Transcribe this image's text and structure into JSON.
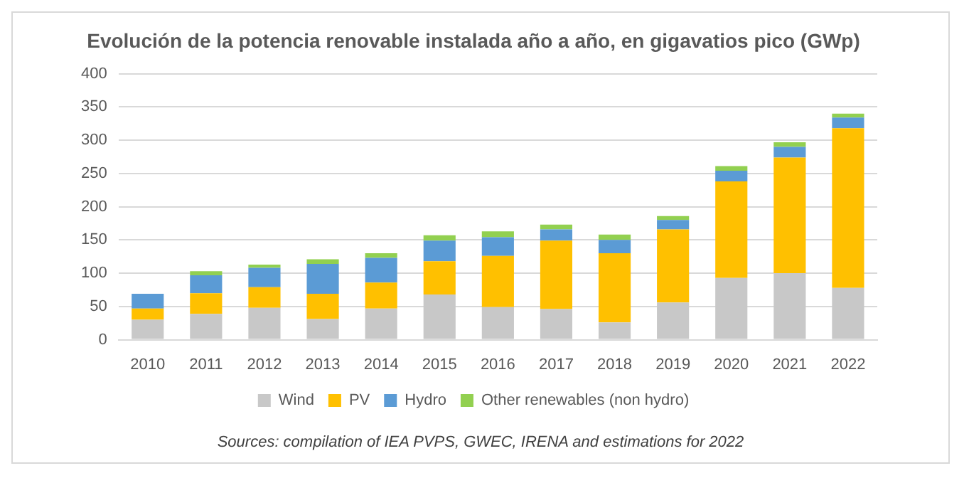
{
  "chart_data": {
    "type": "bar",
    "title": "Evolución de la potencia renovable instalada año a año, en gigavatios pico (GWp)",
    "categories": [
      "2010",
      "2011",
      "2012",
      "2013",
      "2014",
      "2015",
      "2016",
      "2017",
      "2018",
      "2019",
      "2020",
      "2021",
      "2022"
    ],
    "series": [
      {
        "name": "Wind",
        "color": "#c8c8c8",
        "values": [
          30,
          39,
          48,
          31,
          47,
          68,
          49,
          46,
          26,
          56,
          93,
          100,
          78
        ]
      },
      {
        "name": "PV",
        "color": "#ffc000",
        "values": [
          17,
          31,
          31,
          38,
          39,
          50,
          77,
          103,
          104,
          110,
          145,
          174,
          240
        ]
      },
      {
        "name": "Hydro",
        "color": "#5b9bd5",
        "values": [
          22,
          27,
          29,
          45,
          37,
          31,
          28,
          17,
          20,
          14,
          16,
          16,
          16
        ]
      },
      {
        "name": "Other renewables (non hydro)",
        "color": "#92d050",
        "values": [
          0,
          6,
          5,
          7,
          7,
          8,
          9,
          7,
          8,
          6,
          7,
          7,
          6
        ]
      }
    ],
    "stacked": true,
    "ylim": [
      0,
      400
    ],
    "yticks": [
      0,
      50,
      100,
      150,
      200,
      250,
      300,
      350,
      400
    ],
    "grid": "y",
    "legend": "bottom",
    "annotations": [
      "Sources: compilation of IEA PVPS, GWEC, IRENA and estimations for 2022"
    ]
  }
}
